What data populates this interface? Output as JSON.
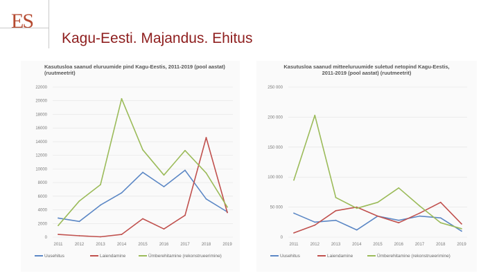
{
  "logo": {
    "text": "ES"
  },
  "header": {
    "title": "Kagu-Eesti. Majandus. Ehitus"
  },
  "colors": {
    "uusehitus": "#5b87c5",
    "laiendamine": "#c0504d",
    "umberehitamine": "#9bbb59",
    "title": "#8e1e1e",
    "logo": "#b54a30"
  },
  "chart_data": [
    {
      "type": "line",
      "title": "Kasutusloa saanud eluruumide pind Kagu-Eestis, 2011-2019 (pool aastat) (ruutmeetrit)",
      "categories": [
        "2011",
        "2012",
        "2013",
        "2014",
        "2015",
        "2016",
        "2017",
        "2018",
        "2019"
      ],
      "yticks": [
        "0",
        "2000",
        "4000",
        "6000",
        "8000",
        "10000",
        "12000",
        "14000",
        "16000",
        "18000",
        "20000",
        "22000"
      ],
      "ylim": [
        0,
        22000
      ],
      "legend_position": "bottom",
      "series": [
        {
          "name": "Uusehitus",
          "values": [
            2800,
            2300,
            4700,
            6500,
            9500,
            7400,
            9800,
            5600,
            3700
          ]
        },
        {
          "name": "Laiendamine",
          "values": [
            400,
            200,
            50,
            400,
            2700,
            1200,
            3200,
            14600,
            3600
          ]
        },
        {
          "name": "Ümberehitamine (rekonstrueerimine)",
          "values": [
            1700,
            5300,
            7700,
            20300,
            12800,
            9100,
            12700,
            9400,
            4400
          ]
        }
      ]
    },
    {
      "type": "line",
      "title": "Kasutusloa saanud mitteeluruumide suletud netopind Kagu-Eestis, 2011-2019 (pool aastat) (ruutmeetrit)",
      "categories": [
        "2011",
        "2012",
        "2013",
        "2014",
        "2015",
        "2016",
        "2017",
        "2018",
        "2019"
      ],
      "yticks": [
        "0",
        "50 000",
        "100 000",
        "150 000",
        "200 000",
        "250 000"
      ],
      "ylim": [
        0,
        250000
      ],
      "legend_position": "bottom",
      "series": [
        {
          "name": "Uusehitus",
          "values": [
            40000,
            25000,
            28000,
            12000,
            35000,
            28000,
            35000,
            32000,
            10000
          ]
        },
        {
          "name": "Laiendamine",
          "values": [
            7000,
            20000,
            44000,
            50000,
            35000,
            24000,
            40000,
            58000,
            22000
          ]
        },
        {
          "name": "Ümberehitamine (rekonstrueerimine)",
          "values": [
            95000,
            203000,
            66000,
            48000,
            58000,
            82000,
            52000,
            24000,
            14000
          ]
        }
      ]
    }
  ]
}
